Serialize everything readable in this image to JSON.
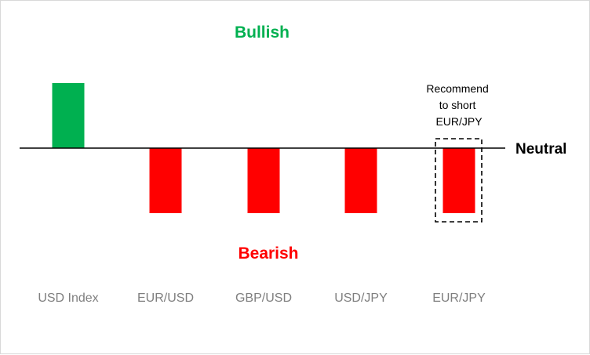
{
  "chart_data": {
    "type": "bar",
    "categories": [
      "USD Index",
      "EUR/USD",
      "GBP/USD",
      "USD/JPY",
      "EUR/JPY"
    ],
    "values": [
      1,
      -1,
      -1,
      -1,
      -1
    ],
    "ylim": [
      -1,
      1
    ],
    "grid": false,
    "legend": "none",
    "labels": {
      "top": "Bullish",
      "bottom": "Bearish",
      "baseline": "Neutral"
    },
    "annotation": {
      "lines": [
        "Recommend",
        "to short",
        "EUR/JPY"
      ],
      "category": "EUR/JPY"
    },
    "colors": {
      "positive": "#00b050",
      "negative": "#ff0000",
      "category_text": "#7f7f7f"
    }
  }
}
